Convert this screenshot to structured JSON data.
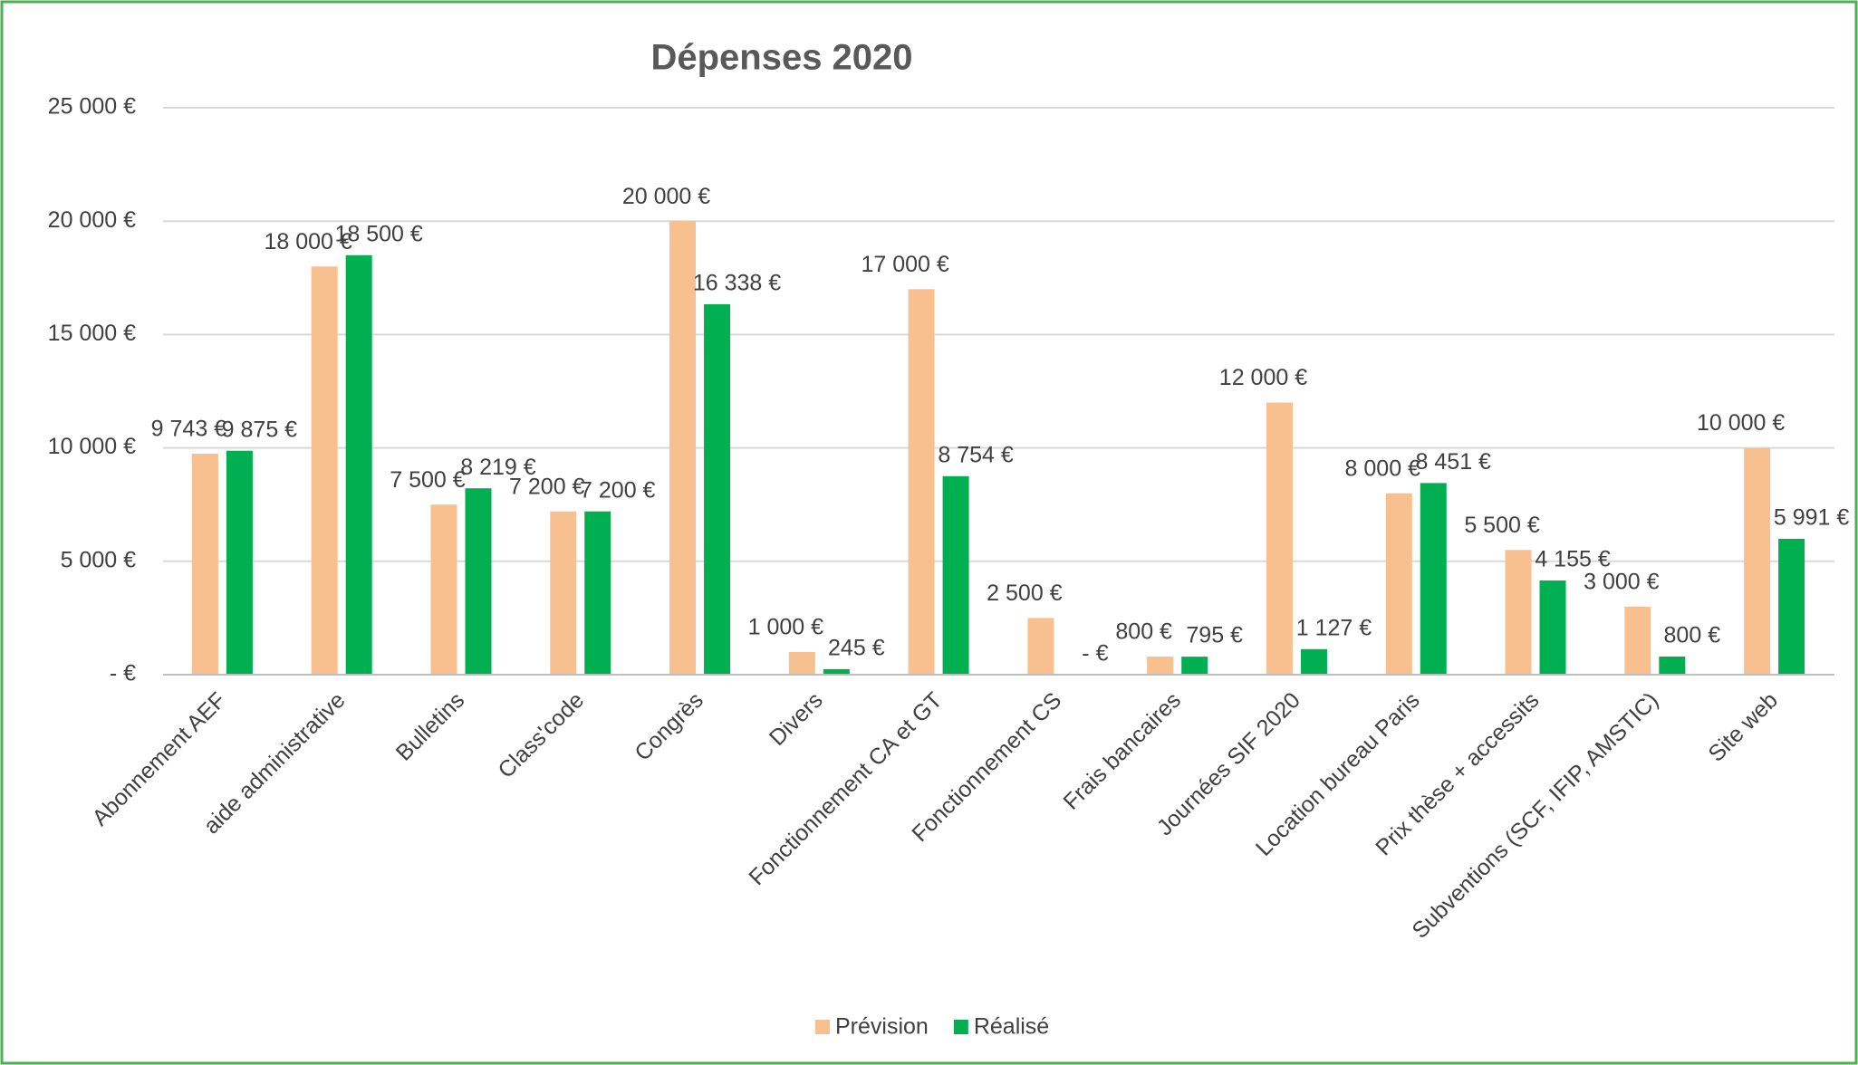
{
  "chart_data": {
    "type": "bar",
    "title": "Dépenses 2020",
    "categories": [
      "Abonnement AEF",
      "aide administrative",
      "Bulletins",
      "Class'code",
      "Congrès",
      "Divers",
      "Fonctionnement CA et GT",
      "Fonctionnement CS",
      "Frais bancaires",
      "Journées SIF 2020",
      "Location bureau Paris",
      "Prix thèse + accessits",
      "Subventions (SCF, IFIP, AMSTIC)",
      "Site web"
    ],
    "series": [
      {
        "name": "Prévision",
        "color": "#f8c08f",
        "values": [
          9743,
          18000,
          7500,
          7200,
          20000,
          1000,
          17000,
          2500,
          800,
          12000,
          8000,
          5500,
          3000,
          10000
        ],
        "value_labels": [
          "9 743 €",
          "18 000 €",
          "7 500 €",
          "7 200 €",
          "20 000 €",
          "1 000 €",
          "17 000 €",
          "2 500 €",
          "800 €",
          "12 000 €",
          "8 000 €",
          "5 500 €",
          "3 000 €",
          "10 000 €"
        ]
      },
      {
        "name": "Réalisé",
        "color": "#00b050",
        "values": [
          9875,
          18500,
          8219,
          7200,
          16338,
          245,
          8754,
          0,
          795,
          1127,
          8451,
          4155,
          800,
          5991
        ],
        "value_labels": [
          "9 875 €",
          "18 500 €",
          "8 219 €",
          "7 200 €",
          "16 338 €",
          "245 €",
          "8 754 €",
          "-   €",
          "795 €",
          "1 127 €",
          "8 451 €",
          "4 155 €",
          "800 €",
          "5 991 €"
        ]
      }
    ],
    "ylim": [
      0,
      25000
    ],
    "yticks": [
      {
        "value": 0,
        "label": "-   €"
      },
      {
        "value": 5000,
        "label": "5 000 €"
      },
      {
        "value": 10000,
        "label": "10 000 €"
      },
      {
        "value": 15000,
        "label": "15 000 €"
      },
      {
        "value": 20000,
        "label": "20 000 €"
      },
      {
        "value": 25000,
        "label": "25 000 €"
      }
    ],
    "grid": true,
    "legend": "bottom"
  }
}
